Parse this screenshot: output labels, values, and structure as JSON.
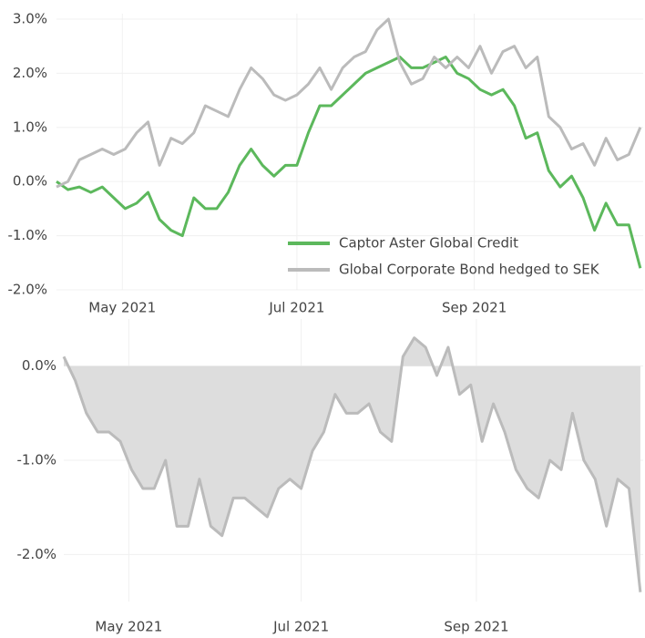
{
  "chart_data": [
    {
      "type": "line",
      "x": [
        98,
        102,
        106,
        110,
        114,
        118,
        122,
        126,
        130,
        134,
        138,
        142,
        146,
        150,
        154,
        158,
        162,
        166,
        170,
        174,
        178,
        182,
        186,
        190,
        194,
        198,
        202,
        206,
        210,
        214,
        218,
        222,
        226,
        230,
        234,
        238,
        242,
        246,
        250,
        254,
        258,
        262,
        266,
        270,
        274,
        278,
        282,
        286,
        290,
        294,
        298,
        302
      ],
      "xlim": [
        98,
        303
      ],
      "xticks": [
        {
          "value": 121,
          "label": "May 2021"
        },
        {
          "value": 182,
          "label": "Jul 2021"
        },
        {
          "value": 244,
          "label": "Sep 2021"
        }
      ],
      "ylim": [
        -2.0,
        3.1
      ],
      "yticks": [
        {
          "value": -2,
          "label": "-2.0%"
        },
        {
          "value": -1,
          "label": "-1.0%"
        },
        {
          "value": 0,
          "label": "0.0%"
        },
        {
          "value": 1,
          "label": "1.0%"
        },
        {
          "value": 2,
          "label": "2.0%"
        },
        {
          "value": 3,
          "label": "3.0%"
        }
      ],
      "grid": true,
      "legend": "lower right",
      "series": [
        {
          "name": "Captor Aster Global Credit",
          "color": "#5cb85c",
          "values": [
            0.0,
            -0.15,
            -0.1,
            -0.2,
            -0.1,
            -0.3,
            -0.5,
            -0.4,
            -0.2,
            -0.7,
            -0.9,
            -1.0,
            -0.3,
            -0.5,
            -0.5,
            -0.2,
            0.3,
            0.6,
            0.3,
            0.1,
            0.3,
            0.3,
            0.9,
            1.4,
            1.4,
            1.6,
            1.8,
            2.0,
            2.1,
            2.2,
            2.3,
            2.1,
            2.1,
            2.2,
            2.3,
            2.0,
            1.9,
            1.7,
            1.6,
            1.7,
            1.4,
            0.8,
            0.9,
            0.2,
            -0.1,
            0.1,
            -0.3,
            -0.9,
            -0.4,
            -0.8,
            -0.8,
            -1.6
          ]
        },
        {
          "name": "Global Corporate Bond hedged to SEK",
          "color": "#bbbbbb",
          "values": [
            -0.1,
            0.0,
            0.4,
            0.5,
            0.6,
            0.5,
            0.6,
            0.9,
            1.1,
            0.3,
            0.8,
            0.7,
            0.9,
            1.4,
            1.3,
            1.2,
            1.7,
            2.1,
            1.9,
            1.6,
            1.5,
            1.6,
            1.8,
            2.1,
            1.7,
            2.1,
            2.3,
            2.4,
            2.8,
            3.0,
            2.2,
            1.8,
            1.9,
            2.3,
            2.1,
            2.3,
            2.1,
            2.5,
            2.0,
            2.4,
            2.5,
            2.1,
            2.3,
            1.2,
            1.0,
            0.6,
            0.7,
            0.3,
            0.8,
            0.4,
            0.5,
            1.0
          ]
        }
      ]
    },
    {
      "type": "area",
      "x": [
        98,
        102,
        106,
        110,
        114,
        118,
        122,
        126,
        130,
        134,
        138,
        142,
        146,
        150,
        154,
        158,
        162,
        166,
        170,
        174,
        178,
        182,
        186,
        190,
        194,
        198,
        202,
        206,
        210,
        214,
        218,
        222,
        226,
        230,
        234,
        238,
        242,
        246,
        250,
        254,
        258,
        262,
        266,
        270,
        274,
        278,
        282,
        286,
        290,
        294,
        298,
        302
      ],
      "xlim": [
        98,
        303
      ],
      "xticks": [
        {
          "value": 121,
          "label": "May 2021"
        },
        {
          "value": 182,
          "label": "Jul 2021"
        },
        {
          "value": 244,
          "label": "Sep 2021"
        }
      ],
      "ylim": [
        -2.5,
        0.5
      ],
      "yticks": [
        {
          "value": -2,
          "label": "-2.0%"
        },
        {
          "value": -1,
          "label": "-1.0%"
        },
        {
          "value": 0,
          "label": "0.0%"
        }
      ],
      "grid": true,
      "color": "#bbbbbb",
      "fill": "#dddddd",
      "values": [
        0.1,
        -0.15,
        -0.5,
        -0.7,
        -0.7,
        -0.8,
        -1.1,
        -1.3,
        -1.3,
        -1.0,
        -1.7,
        -1.7,
        -1.2,
        -1.7,
        -1.8,
        -1.4,
        -1.4,
        -1.5,
        -1.6,
        -1.3,
        -1.2,
        -1.3,
        -0.9,
        -0.7,
        -0.3,
        -0.5,
        -0.5,
        -0.4,
        -0.7,
        -0.8,
        0.1,
        0.3,
        0.2,
        -0.1,
        0.2,
        -0.3,
        -0.2,
        -0.8,
        -0.4,
        -0.7,
        -1.1,
        -1.3,
        -1.4,
        -1.0,
        -1.1,
        -0.5,
        -1.0,
        -1.2,
        -1.7,
        -1.2,
        -1.3,
        -2.4
      ]
    }
  ]
}
